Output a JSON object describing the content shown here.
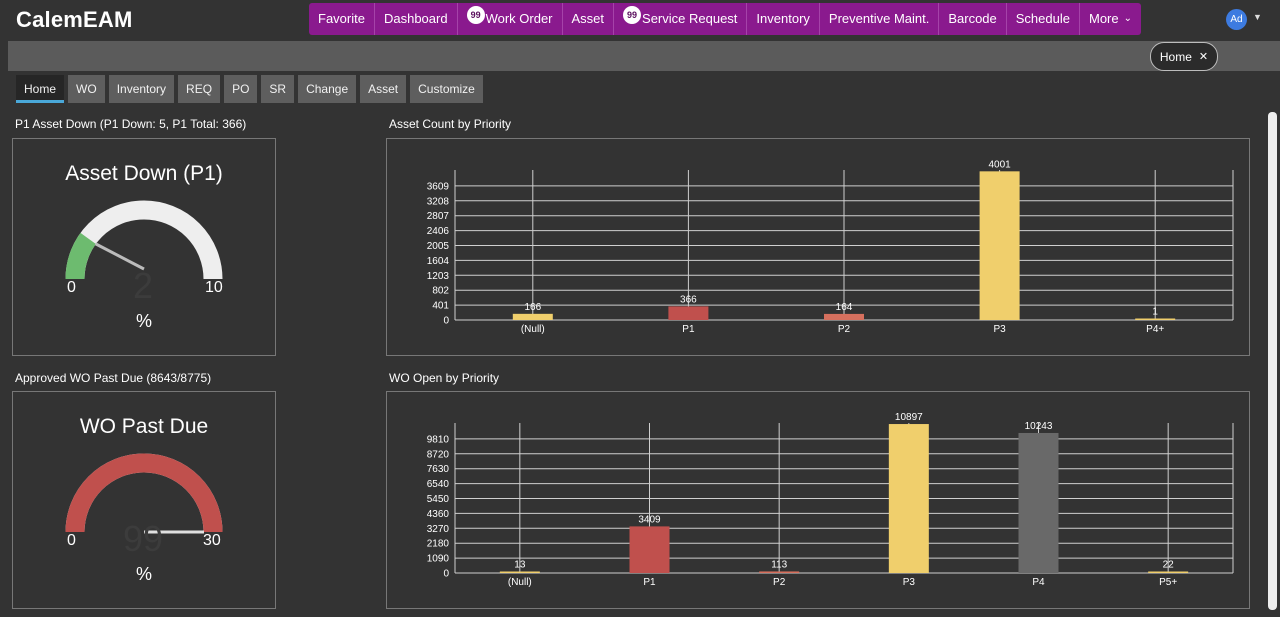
{
  "app": {
    "logo": "CalemEAM"
  },
  "main_nav": [
    {
      "label": "Favorite"
    },
    {
      "label": "Dashboard"
    },
    {
      "label": "Work Order",
      "badge": "99"
    },
    {
      "label": "Asset"
    },
    {
      "label": "Service Request",
      "badge": "99"
    },
    {
      "label": "Inventory"
    },
    {
      "label": "Preventive Maint."
    },
    {
      "label": "Barcode"
    },
    {
      "label": "Schedule"
    },
    {
      "label": "More",
      "caret": true
    }
  ],
  "user": {
    "initials": "Ad"
  },
  "open_tab": {
    "label": "Home"
  },
  "tabs": [
    {
      "label": "Home",
      "active": true
    },
    {
      "label": "WO"
    },
    {
      "label": "Inventory"
    },
    {
      "label": "REQ"
    },
    {
      "label": "PO"
    },
    {
      "label": "SR"
    },
    {
      "label": "Change"
    },
    {
      "label": "Asset"
    },
    {
      "label": "Customize"
    }
  ],
  "gauges": [
    {
      "section_title": "P1 Asset Down (P1 Down: 5, P1 Total: 366)",
      "title": "Asset Down (P1)",
      "min": "0",
      "max": "10",
      "value": "2",
      "unit": "%",
      "fill_fraction": 0.2,
      "color": "#6dbb6f",
      "track_color": "#eeeeee",
      "needle_color": "#bbbbbb"
    },
    {
      "section_title": "Approved WO Past Due (8643/8775)",
      "title": "WO Past Due",
      "min": "0",
      "max": "30",
      "value": "99",
      "unit": "%",
      "fill_fraction": 1.0,
      "color": "#c0504d",
      "track_color": "#eeeeee",
      "needle_color": "#e0e0e0"
    }
  ],
  "chart_data": [
    {
      "type": "bar",
      "title": "Asset Count by Priority",
      "categories": [
        "(Null)",
        "P1",
        "P2",
        "P3",
        "P4+"
      ],
      "values": [
        166,
        366,
        164,
        4001,
        1
      ],
      "value_labels": [
        "166",
        "366",
        "164",
        "4001",
        "1"
      ],
      "colors": [
        "#f0cf6c",
        "#c0504d",
        "#d6705e",
        "#f0cf6c",
        "#f0cf6c"
      ],
      "yticks": [
        "0",
        "401",
        "802",
        "1203",
        "1604",
        "2005",
        "2406",
        "2807",
        "3208",
        "3609"
      ],
      "ylim": [
        0,
        4010
      ],
      "grid": true
    },
    {
      "type": "bar",
      "title": "WO Open by Priority",
      "categories": [
        "(Null)",
        "P1",
        "P2",
        "P3",
        "P4",
        "P5+"
      ],
      "values": [
        13,
        3409,
        113,
        10897,
        10243,
        22
      ],
      "value_labels": [
        "13",
        "3409",
        "113",
        "10897",
        "10243",
        "22"
      ],
      "colors": [
        "#f0cf6c",
        "#c0504d",
        "#d6705e",
        "#f0cf6c",
        "#696969",
        "#f0cf6c"
      ],
      "yticks": [
        "0",
        "1090",
        "2180",
        "3270",
        "4360",
        "5450",
        "6540",
        "7630",
        "8720",
        "9810"
      ],
      "ylim": [
        0,
        10900
      ],
      "grid": true
    }
  ]
}
